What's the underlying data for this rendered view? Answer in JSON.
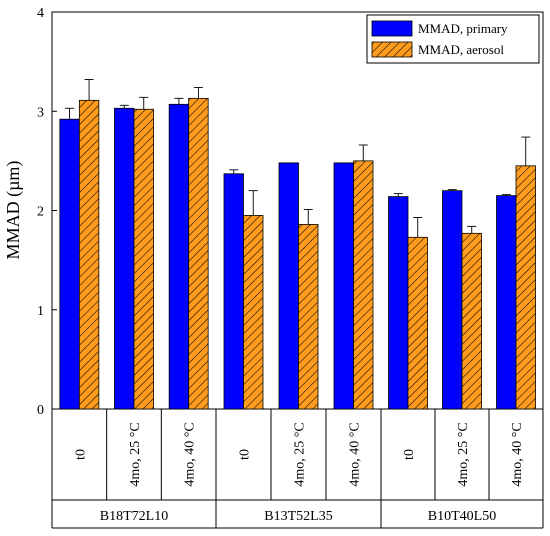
{
  "chart_data": {
    "type": "bar",
    "ylabel": "MMAD (µm)",
    "ylim": [
      0,
      4
    ],
    "yticks": [
      0,
      1,
      2,
      3,
      4
    ],
    "legend_placement": "top-right",
    "series": [
      {
        "name": "MMAD, primary",
        "color": "#0000ff",
        "pattern": "solid",
        "values": [
          2.92,
          3.03,
          3.07,
          2.37,
          2.48,
          2.48,
          2.14,
          2.2,
          2.15
        ],
        "errors": [
          0.11,
          0.03,
          0.06,
          0.04,
          0.0,
          0.0,
          0.03,
          0.01,
          0.01
        ]
      },
      {
        "name": "MMAD, aerosol",
        "color": "#ff9c1e",
        "pattern": "hatched",
        "values": [
          3.11,
          3.02,
          3.13,
          1.95,
          1.86,
          2.5,
          1.73,
          1.77,
          2.45
        ],
        "errors": [
          0.21,
          0.12,
          0.11,
          0.25,
          0.15,
          0.16,
          0.2,
          0.07,
          0.29
        ]
      }
    ],
    "conditions": [
      "t0",
      "4mo, 25 °C",
      "4mo, 40 °C",
      "t0",
      "4mo, 25 °C",
      "4mo, 40 °C",
      "t0",
      "4mo, 25 °C",
      "4mo, 40 °C"
    ],
    "groups": [
      "B18T72L10",
      "B13T52L35",
      "B10T40L50"
    ]
  }
}
